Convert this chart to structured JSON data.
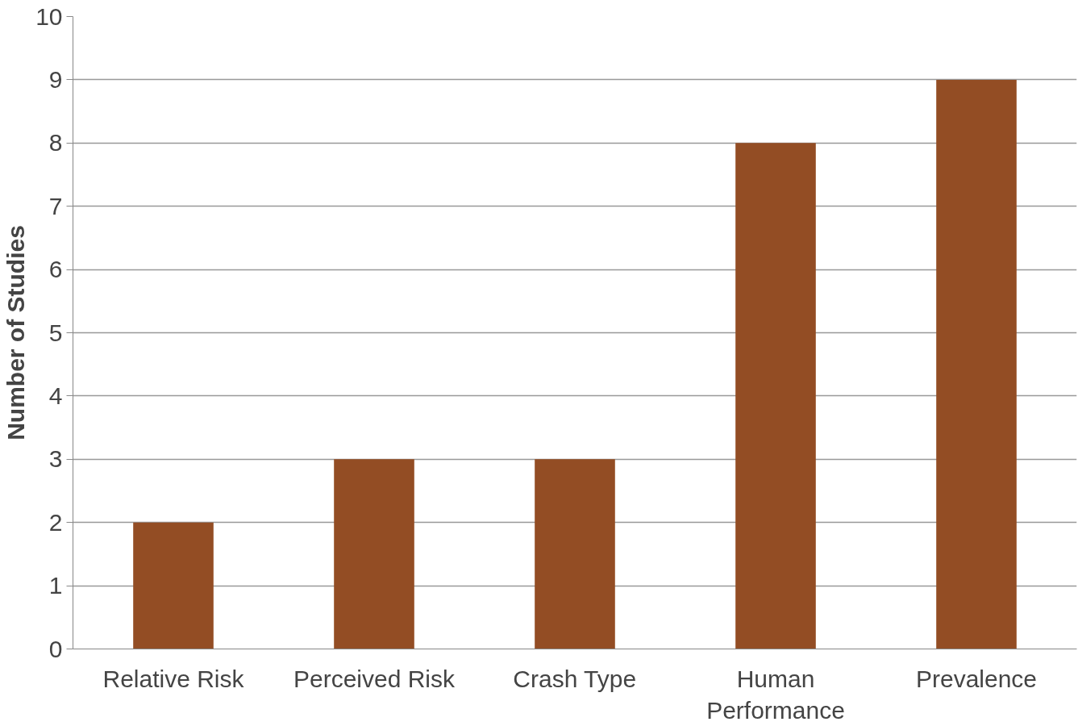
{
  "chart_data": {
    "type": "bar",
    "ylabel": "Number of Studies",
    "categories": [
      "Relative Risk",
      "Perceived Risk",
      "Crash Type",
      "Human Performance",
      "Prevalence"
    ],
    "values": [
      2,
      3,
      3,
      8,
      9
    ],
    "color": "#934d24",
    "ylim": [
      0,
      10
    ],
    "yticks": [
      0,
      1,
      2,
      3,
      4,
      5,
      6,
      7,
      8,
      9,
      10
    ],
    "grid": "y"
  }
}
